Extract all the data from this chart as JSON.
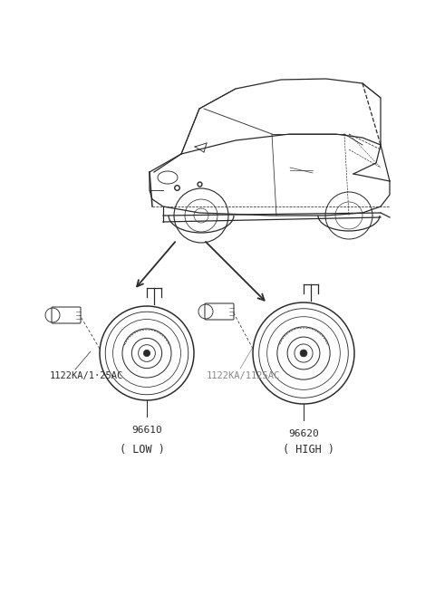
{
  "bg_color": "#ffffff",
  "fig_width": 4.8,
  "fig_height": 6.57,
  "dpi": 100,
  "line_color": "#2a2a2a",
  "text_color": "#2a2a2a",
  "gray_text_color": "#888888",
  "low_part": "96610",
  "high_part": "96620",
  "bolt_label_low": "1122KA/1·25AC",
  "bolt_label_high": "1122KA/1125AC",
  "low_caption": "( LOW )",
  "high_caption": "( HIGH )"
}
